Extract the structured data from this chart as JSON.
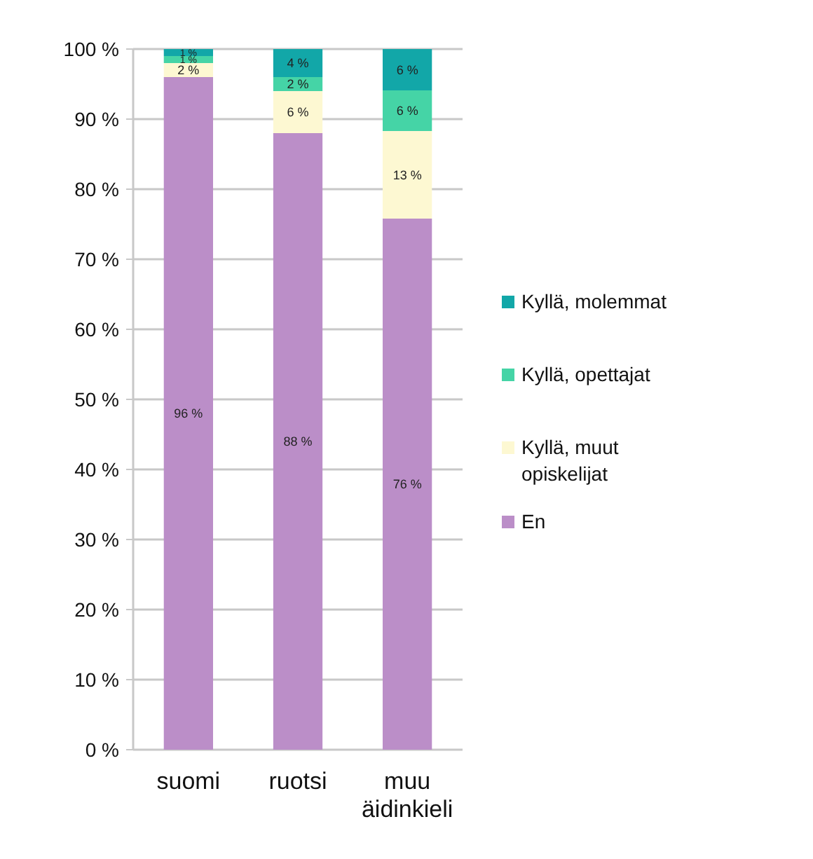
{
  "chart_data": {
    "type": "bar",
    "stacked": true,
    "categories": [
      "suomi",
      "ruotsi",
      "muu äidinkieli"
    ],
    "series": [
      {
        "name": "En",
        "color": "#bb8ec8",
        "values": [
          96,
          88,
          75.8
        ],
        "value_labels": [
          "96 %",
          "88 %",
          "76 %"
        ]
      },
      {
        "name": "Kyllä, muut opiskelijat",
        "color": "#fdf8d2",
        "values": [
          2,
          6,
          12.5
        ],
        "value_labels": [
          "2 %",
          "6 %",
          "13 %"
        ]
      },
      {
        "name": "Kyllä, opettajat",
        "color": "#45d4a6",
        "values": [
          1,
          2,
          5.8
        ],
        "value_labels": [
          "1 %",
          "2 %",
          "6 %"
        ]
      },
      {
        "name": "Kyllä, molemmat",
        "color": "#12a7a8",
        "values": [
          1,
          4,
          5.9
        ],
        "value_labels": [
          "1 %",
          "4 %",
          "6 %"
        ]
      }
    ],
    "ylim": [
      0,
      100
    ],
    "yticks": [
      {
        "value": 0,
        "label": "0 %"
      },
      {
        "value": 10,
        "label": "10 %"
      },
      {
        "value": 20,
        "label": "20 %"
      },
      {
        "value": 30,
        "label": "30 %"
      },
      {
        "value": 40,
        "label": "40 %"
      },
      {
        "value": 50,
        "label": "50 %"
      },
      {
        "value": 60,
        "label": "60 %"
      },
      {
        "value": 70,
        "label": "70 %"
      },
      {
        "value": 80,
        "label": "80 %"
      },
      {
        "value": 90,
        "label": "90 %"
      },
      {
        "value": 100,
        "label": "100 %"
      }
    ],
    "grid": "y",
    "legend": "right"
  }
}
